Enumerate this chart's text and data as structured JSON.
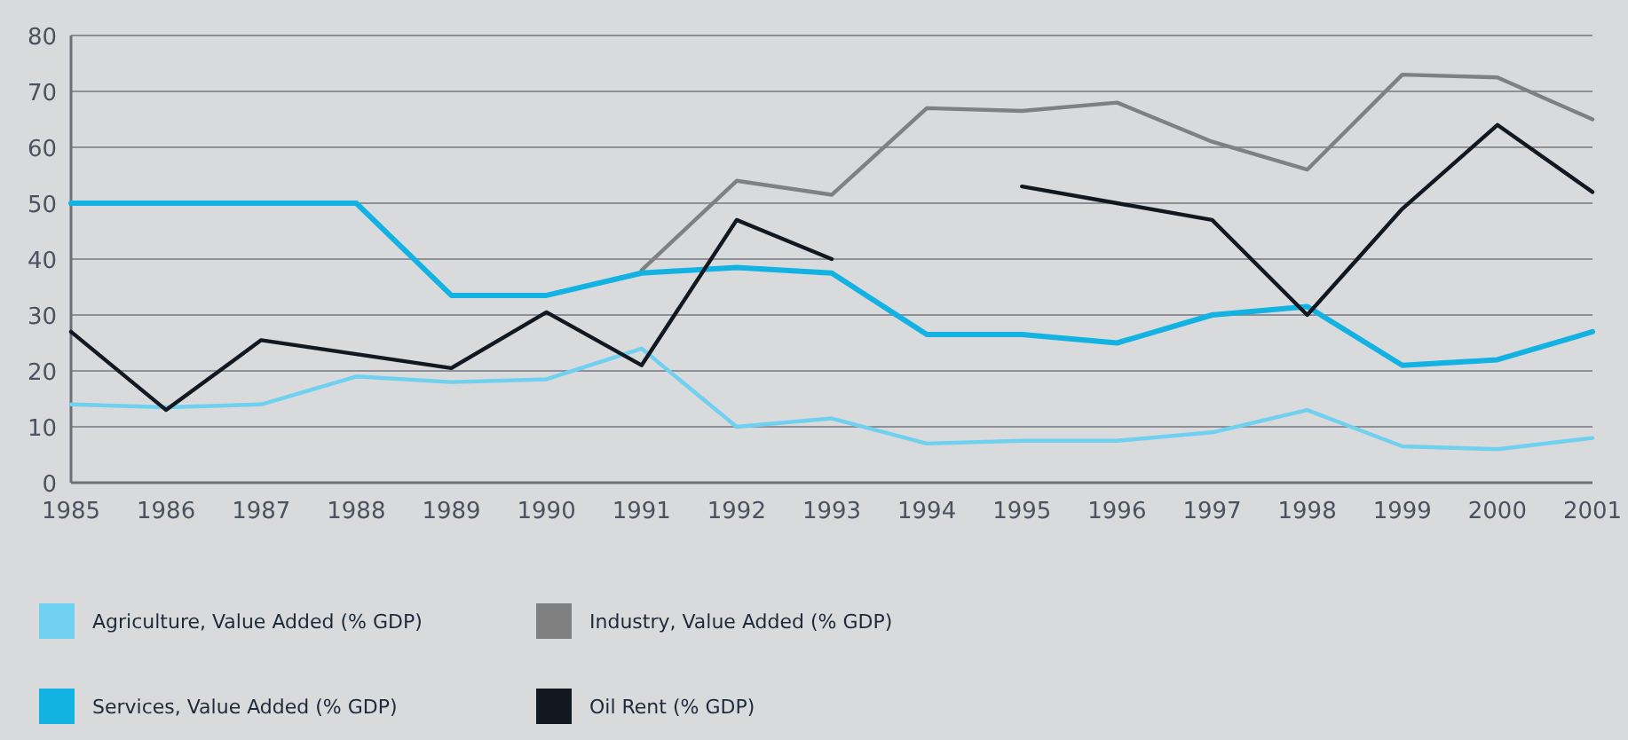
{
  "chart_data": {
    "type": "line",
    "categories": [
      "1985",
      "1986",
      "1987",
      "1988",
      "1989",
      "1990",
      "1991",
      "1992",
      "1993",
      "1994",
      "1995",
      "1996",
      "1997",
      "1998",
      "1999",
      "2000",
      "2001"
    ],
    "series": [
      {
        "name": "Agriculture, Value Added (% GDP)",
        "color": "#6fd0f0",
        "values": [
          14,
          13.5,
          14,
          19,
          18,
          18.5,
          24,
          10,
          11.5,
          7,
          7.5,
          7.5,
          9,
          13,
          6.5,
          6,
          8
        ]
      },
      {
        "name": "Industry, Value Added (% GDP)",
        "color": "#808080",
        "values": [
          null,
          null,
          null,
          null,
          null,
          null,
          38,
          54,
          51.5,
          67,
          66.5,
          68,
          61,
          56,
          73,
          72.5,
          65
        ]
      },
      {
        "name": "Services, Value Added (% GDP)",
        "color": "#12b2e2",
        "values": [
          50,
          50,
          50,
          50,
          33.5,
          33.5,
          37.5,
          38.5,
          37.5,
          26.5,
          26.5,
          25,
          30,
          31.5,
          21,
          22,
          27
        ]
      },
      {
        "name": "Oil Rent (% GDP)",
        "color": "#111820",
        "values": [
          27,
          13,
          25.5,
          23,
          20.5,
          30.5,
          21,
          47,
          40,
          null,
          53,
          50,
          47,
          30,
          49,
          64,
          52
        ]
      }
    ],
    "ylim": [
      0,
      80
    ],
    "yticks": [
      0,
      10,
      20,
      30,
      40,
      50,
      60,
      70,
      80
    ],
    "grid": "y",
    "legend": "bottom",
    "line_style": "solid",
    "marker": "none"
  }
}
